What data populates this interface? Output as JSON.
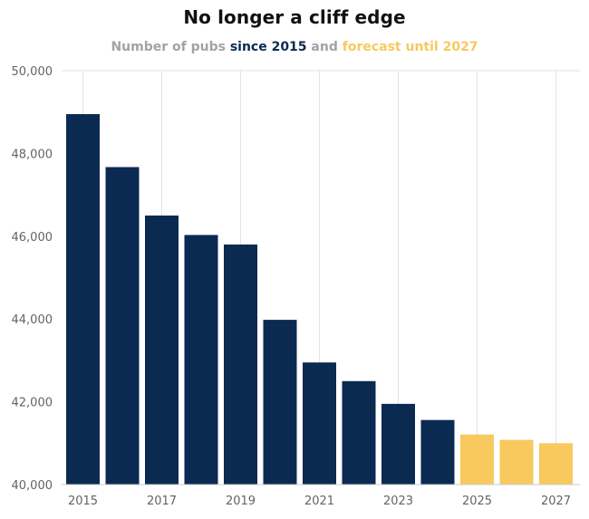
{
  "chart_data": {
    "type": "bar",
    "title": "No longer a cliff edge",
    "subtitle": {
      "part1": "Number of pubs",
      "part2": "since 2015",
      "part3": "and",
      "part4": "forecast until 2027"
    },
    "categories": [
      "2015",
      "2016",
      "2017",
      "2018",
      "2019",
      "2020",
      "2021",
      "2022",
      "2023",
      "2024",
      "2025",
      "2026",
      "2027"
    ],
    "series": [
      {
        "name": "since 2015",
        "color": "#0b2a52",
        "values": [
          48950,
          47670,
          46500,
          46030,
          45800,
          43980,
          42950,
          42500,
          41950,
          41560,
          null,
          null,
          null
        ]
      },
      {
        "name": "forecast until 2027",
        "color": "#f7c95f",
        "values": [
          null,
          null,
          null,
          null,
          null,
          null,
          null,
          null,
          null,
          null,
          41210,
          41080,
          41000
        ]
      }
    ],
    "ylim": [
      40000,
      50000
    ],
    "yticks": [
      40000,
      42000,
      44000,
      46000,
      48000,
      50000
    ],
    "ytick_labels": [
      "40,000",
      "42,000",
      "44,000",
      "46,000",
      "48,000",
      "50,000"
    ],
    "xtick_labels": [
      "2015",
      "2017",
      "2019",
      "2021",
      "2023",
      "2025",
      "2027"
    ],
    "xlabel": "",
    "ylabel": "",
    "grid": "vertical",
    "legend": "none"
  }
}
